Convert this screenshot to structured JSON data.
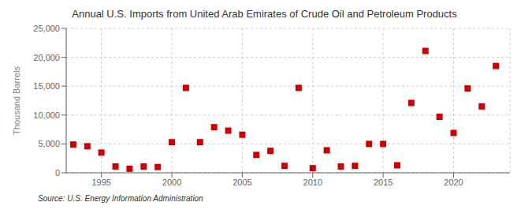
{
  "chart_data": {
    "type": "scatter",
    "title": "Annual U.S. Imports from United Arab Emirates of Crude Oil and Petroleum Products",
    "ylabel": "Thousand Barrels",
    "annotation": "Source: U.S. Energy Information Administration",
    "x": [
      1993,
      1994,
      1995,
      1996,
      1997,
      1998,
      1999,
      2000,
      2001,
      2002,
      2003,
      2004,
      2005,
      2006,
      2007,
      2008,
      2009,
      2010,
      2011,
      2012,
      2013,
      2014,
      2015,
      2016,
      2017,
      2018,
      2019,
      2020,
      2021,
      2022,
      2023
    ],
    "values": [
      4900,
      4600,
      3500,
      1100,
      700,
      1100,
      1000,
      5300,
      14700,
      5300,
      7900,
      7300,
      6600,
      3100,
      3800,
      1200,
      14700,
      800,
      3900,
      1100,
      1200,
      5000,
      5000,
      1300,
      12100,
      21100,
      9700,
      6900,
      14600,
      11500,
      18500
    ],
    "color": "#cc0000",
    "marker": "square",
    "xlim": [
      1992.5,
      2024
    ],
    "xticks": [
      1995,
      2000,
      2005,
      2010,
      2015,
      2020
    ],
    "ylim": [
      0,
      25000
    ],
    "yticks": [
      0,
      {
        "value": 5000,
        "label": "5,000"
      },
      {
        "value": 10000,
        "label": "10,000"
      },
      {
        "value": 15000,
        "label": "15,000"
      },
      {
        "value": 20000,
        "label": "20,000"
      },
      {
        "value": 25000,
        "label": "25,000"
      }
    ],
    "grid": true
  }
}
